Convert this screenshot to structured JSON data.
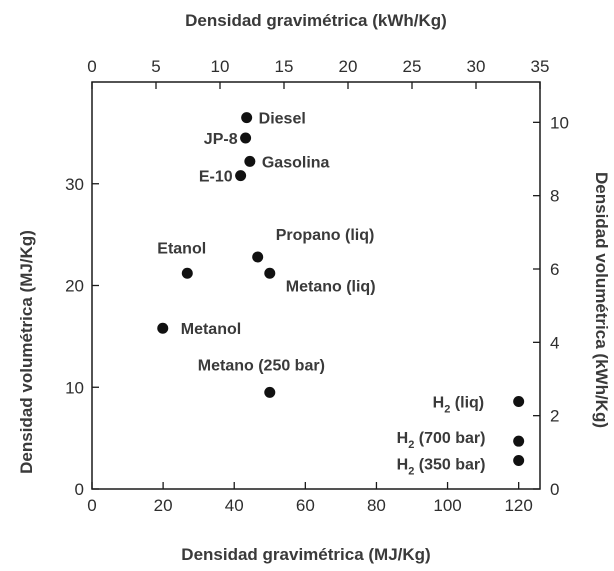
{
  "chart_data": {
    "type": "scatter",
    "title": "",
    "xlabel_bottom": "Densidad gravimétrica (MJ/Kg)",
    "xlabel_top": "Densidad gravimétrica (kWh/Kg)",
    "ylabel_left": "Densidad volumétrica (MJ/Kg)",
    "ylabel_right": "Densidad volumétrica (kWh/Kg)",
    "x_bottom_lim": [
      0,
      126
    ],
    "x_bottom_ticks": [
      0,
      20,
      40,
      60,
      80,
      100,
      120
    ],
    "x_top_lim": [
      0,
      35
    ],
    "x_top_ticks": [
      0,
      5,
      10,
      15,
      20,
      25,
      30,
      35
    ],
    "y_left_lim": [
      0,
      40
    ],
    "y_left_ticks": [
      0,
      10,
      20,
      30
    ],
    "y_right_lim": [
      0,
      11.1
    ],
    "y_right_ticks": [
      0,
      2,
      4,
      6,
      8,
      10
    ],
    "grid": false,
    "legend": "none",
    "marker_color": "#111111",
    "points": [
      {
        "label": "Diesel",
        "sub": "",
        "suffix": "",
        "x": 43.5,
        "y": 36.5
      },
      {
        "label": "JP-8",
        "sub": "",
        "suffix": "",
        "x": 43.2,
        "y": 34.5
      },
      {
        "label": "Gasolina",
        "sub": "",
        "suffix": "",
        "x": 44.4,
        "y": 32.2
      },
      {
        "label": "E-10",
        "sub": "",
        "suffix": "",
        "x": 41.8,
        "y": 30.8
      },
      {
        "label": "Propano (liq)",
        "sub": "",
        "suffix": "",
        "x": 46.6,
        "y": 22.8
      },
      {
        "label": "Metano (liq)",
        "sub": "",
        "suffix": "",
        "x": 50.0,
        "y": 21.2
      },
      {
        "label": "Etanol",
        "sub": "",
        "suffix": "",
        "x": 26.8,
        "y": 21.2
      },
      {
        "label": "Metanol",
        "sub": "",
        "suffix": "",
        "x": 19.9,
        "y": 15.8
      },
      {
        "label": "Metano (250 bar)",
        "sub": "",
        "suffix": "",
        "x": 50.0,
        "y": 9.5
      },
      {
        "label": "H",
        "sub": "2",
        "suffix": " (liq)",
        "x": 120.0,
        "y": 8.6
      },
      {
        "label": "H",
        "sub": "2",
        "suffix": " (700 bar)",
        "x": 120.0,
        "y": 4.7
      },
      {
        "label": "H",
        "sub": "2",
        "suffix": " (350 bar)",
        "x": 120.0,
        "y": 2.8
      }
    ]
  }
}
